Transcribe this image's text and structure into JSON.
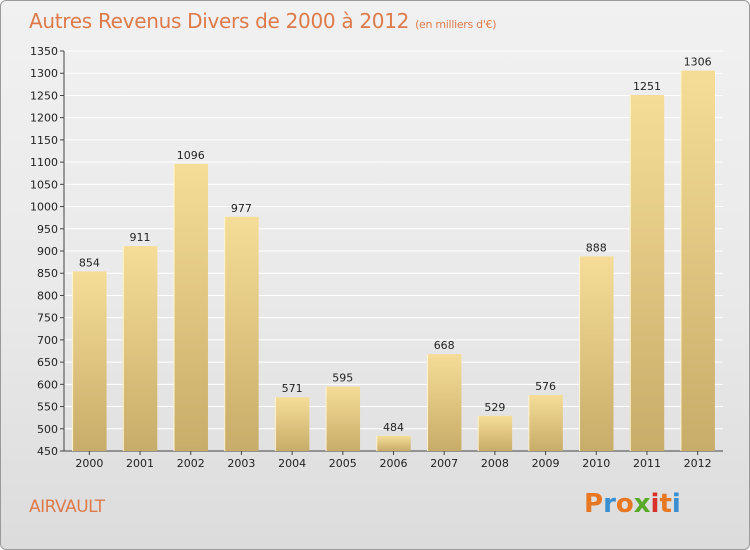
{
  "header": {
    "title": "Autres Revenus Divers de 2000 à 2012",
    "unit": "(en milliers d'€)"
  },
  "footer": {
    "place": "AIRVAULT",
    "logo_letters": [
      "P",
      "r",
      "o",
      "x",
      "i",
      "t",
      "i"
    ],
    "logo_colors": [
      "#e87722",
      "#3a8fd1",
      "#e87722",
      "#5aaa2a",
      "#d9302a",
      "#e87722",
      "#3a8fd1"
    ]
  },
  "colors": {
    "title": "#de7a4a",
    "bar_light": "#f5dd97",
    "bar_dark": "#c8ac69",
    "grid": "#ffffff"
  },
  "chart_data": {
    "type": "bar",
    "categories": [
      "2000",
      "2001",
      "2002",
      "2003",
      "2004",
      "2005",
      "2006",
      "2007",
      "2008",
      "2009",
      "2010",
      "2011",
      "2012"
    ],
    "values": [
      854,
      911,
      1096,
      977,
      571,
      595,
      484,
      668,
      529,
      576,
      888,
      1251,
      1306
    ],
    "title": "Autres Revenus Divers de 2000 à 2012",
    "xlabel": "",
    "ylabel": "",
    "ylim": [
      450,
      1350
    ],
    "yticks": [
      450,
      500,
      550,
      600,
      650,
      700,
      750,
      800,
      850,
      900,
      950,
      1000,
      1050,
      1100,
      1150,
      1200,
      1250,
      1300,
      1350
    ],
    "grid": true
  }
}
